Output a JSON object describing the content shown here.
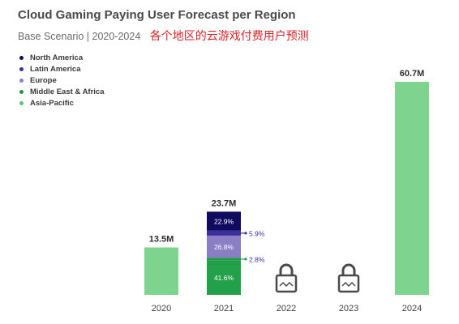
{
  "header": {
    "title": "Cloud Gaming Paying User Forecast per Region",
    "subtitle": "Base Scenario | 2020-2024",
    "annotation": "各个地区的云游戏付费用户预测"
  },
  "chart_data": {
    "type": "bar",
    "stacked": true,
    "categories": [
      "2020",
      "2021",
      "2022",
      "2023",
      "2024"
    ],
    "totals": [
      13.5,
      23.7,
      null,
      null,
      60.7
    ],
    "total_labels": [
      "13.5M",
      "23.7M",
      "",
      "",
      "60.7M"
    ],
    "unit": "M",
    "legend": [
      {
        "name": "North America",
        "color": "#0f0b5e"
      },
      {
        "name": "Latin America",
        "color": "#3b2f9e"
      },
      {
        "name": "Europe",
        "color": "#8a7fc4"
      },
      {
        "name": "Middle East & Africa",
        "color": "#1f9a45"
      },
      {
        "name": "Asia-Pacific",
        "color": "#5ec27a"
      }
    ],
    "breakdown_2021": {
      "category": "2021",
      "segments": [
        {
          "name": "Asia-Pacific",
          "percent": 41.6,
          "label": "41.6%",
          "color": "#22a04a",
          "label_position": "inside"
        },
        {
          "name": "Middle East & Africa",
          "percent": 2.8,
          "label": "2.8%",
          "color": "#1f9a45",
          "label_position": "outside"
        },
        {
          "name": "Europe",
          "percent": 26.8,
          "label": "26.8%",
          "color": "#8a7fc4",
          "label_position": "inside"
        },
        {
          "name": "Latin America",
          "percent": 5.9,
          "label": "5.9%",
          "color": "#3b2f9e",
          "label_position": "outside"
        },
        {
          "name": "North America",
          "percent": 22.9,
          "label": "22.9%",
          "color": "#0f0b5e",
          "label_position": "inside"
        }
      ]
    },
    "locked_categories": [
      "2022",
      "2023"
    ],
    "bar_color": "#7ed48f",
    "lock_icon": "lock-icon",
    "grid": false,
    "legend_position": "top-left"
  }
}
